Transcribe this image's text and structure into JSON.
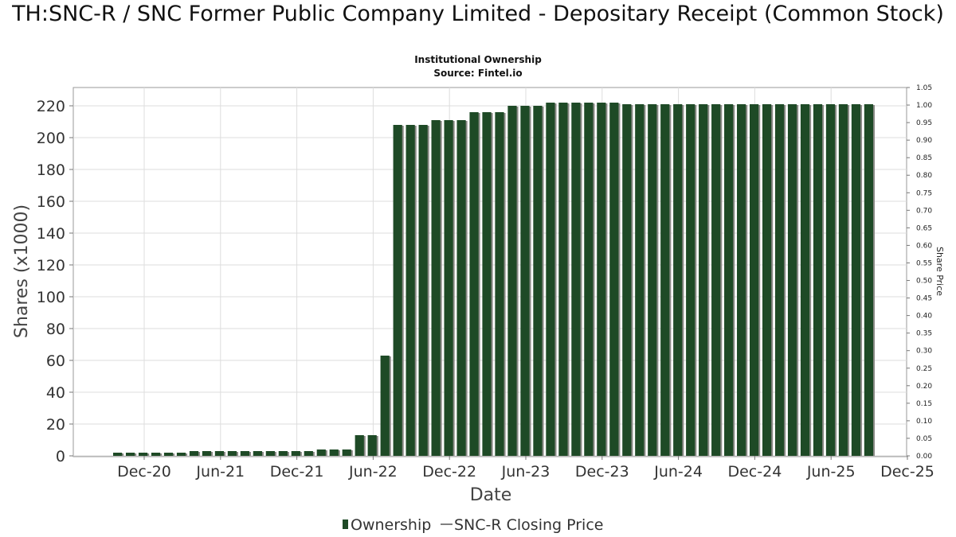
{
  "title": "TH:SNC-R / SNC Former Public Company Limited - Depositary Receipt (Common Stock)",
  "subtitle_lines": [
    "Institutional Ownership",
    "Source: Fintel.io"
  ],
  "colors": {
    "bar": "#1e4a26",
    "bar_shadow": "#8a8a86",
    "grid": "#dddddd",
    "frame": "#999999"
  },
  "chart_data": {
    "type": "bar",
    "xlabel": "Date",
    "ylabel": "Shares (x1000)",
    "y2label": "Share Price",
    "ylim": [
      0,
      230
    ],
    "y2lim": [
      0,
      1.05
    ],
    "yticks": [
      "0",
      "20",
      "40",
      "60",
      "80",
      "100",
      "120",
      "140",
      "160",
      "180",
      "200",
      "220"
    ],
    "y2ticks": [
      "0.00",
      "0.05",
      "0.10",
      "0.15",
      "0.20",
      "0.25",
      "0.30",
      "0.35",
      "0.40",
      "0.45",
      "0.50",
      "0.55",
      "0.60",
      "0.65",
      "0.70",
      "0.75",
      "0.80",
      "0.85",
      "0.90",
      "0.95",
      "1.00",
      "1.05"
    ],
    "xticks": [
      "Dec-20",
      "Jun-21",
      "Dec-21",
      "Jun-22",
      "Dec-22",
      "Jun-23",
      "Dec-23",
      "Jun-24",
      "Dec-24",
      "Jun-25",
      "Dec-25"
    ],
    "grid": true,
    "legend": {
      "position": "bottom",
      "entries": [
        "Ownership",
        "SNC-R Closing Price"
      ]
    },
    "series": [
      {
        "name": "Ownership",
        "values": [
          2,
          2,
          2,
          2,
          2,
          2,
          3,
          3,
          3,
          3,
          3,
          3,
          3,
          3,
          3,
          3,
          4,
          4,
          4,
          13,
          13,
          63,
          208,
          208,
          208,
          211,
          211,
          211,
          216,
          216,
          216,
          220,
          220,
          220,
          222,
          222,
          222,
          222,
          222,
          222,
          221,
          221,
          221,
          221,
          221,
          221,
          221,
          221,
          221,
          221,
          221,
          221,
          221,
          221,
          221,
          221,
          221,
          221,
          221,
          221
        ]
      },
      {
        "name": "SNC-R Closing Price",
        "values": []
      }
    ]
  }
}
